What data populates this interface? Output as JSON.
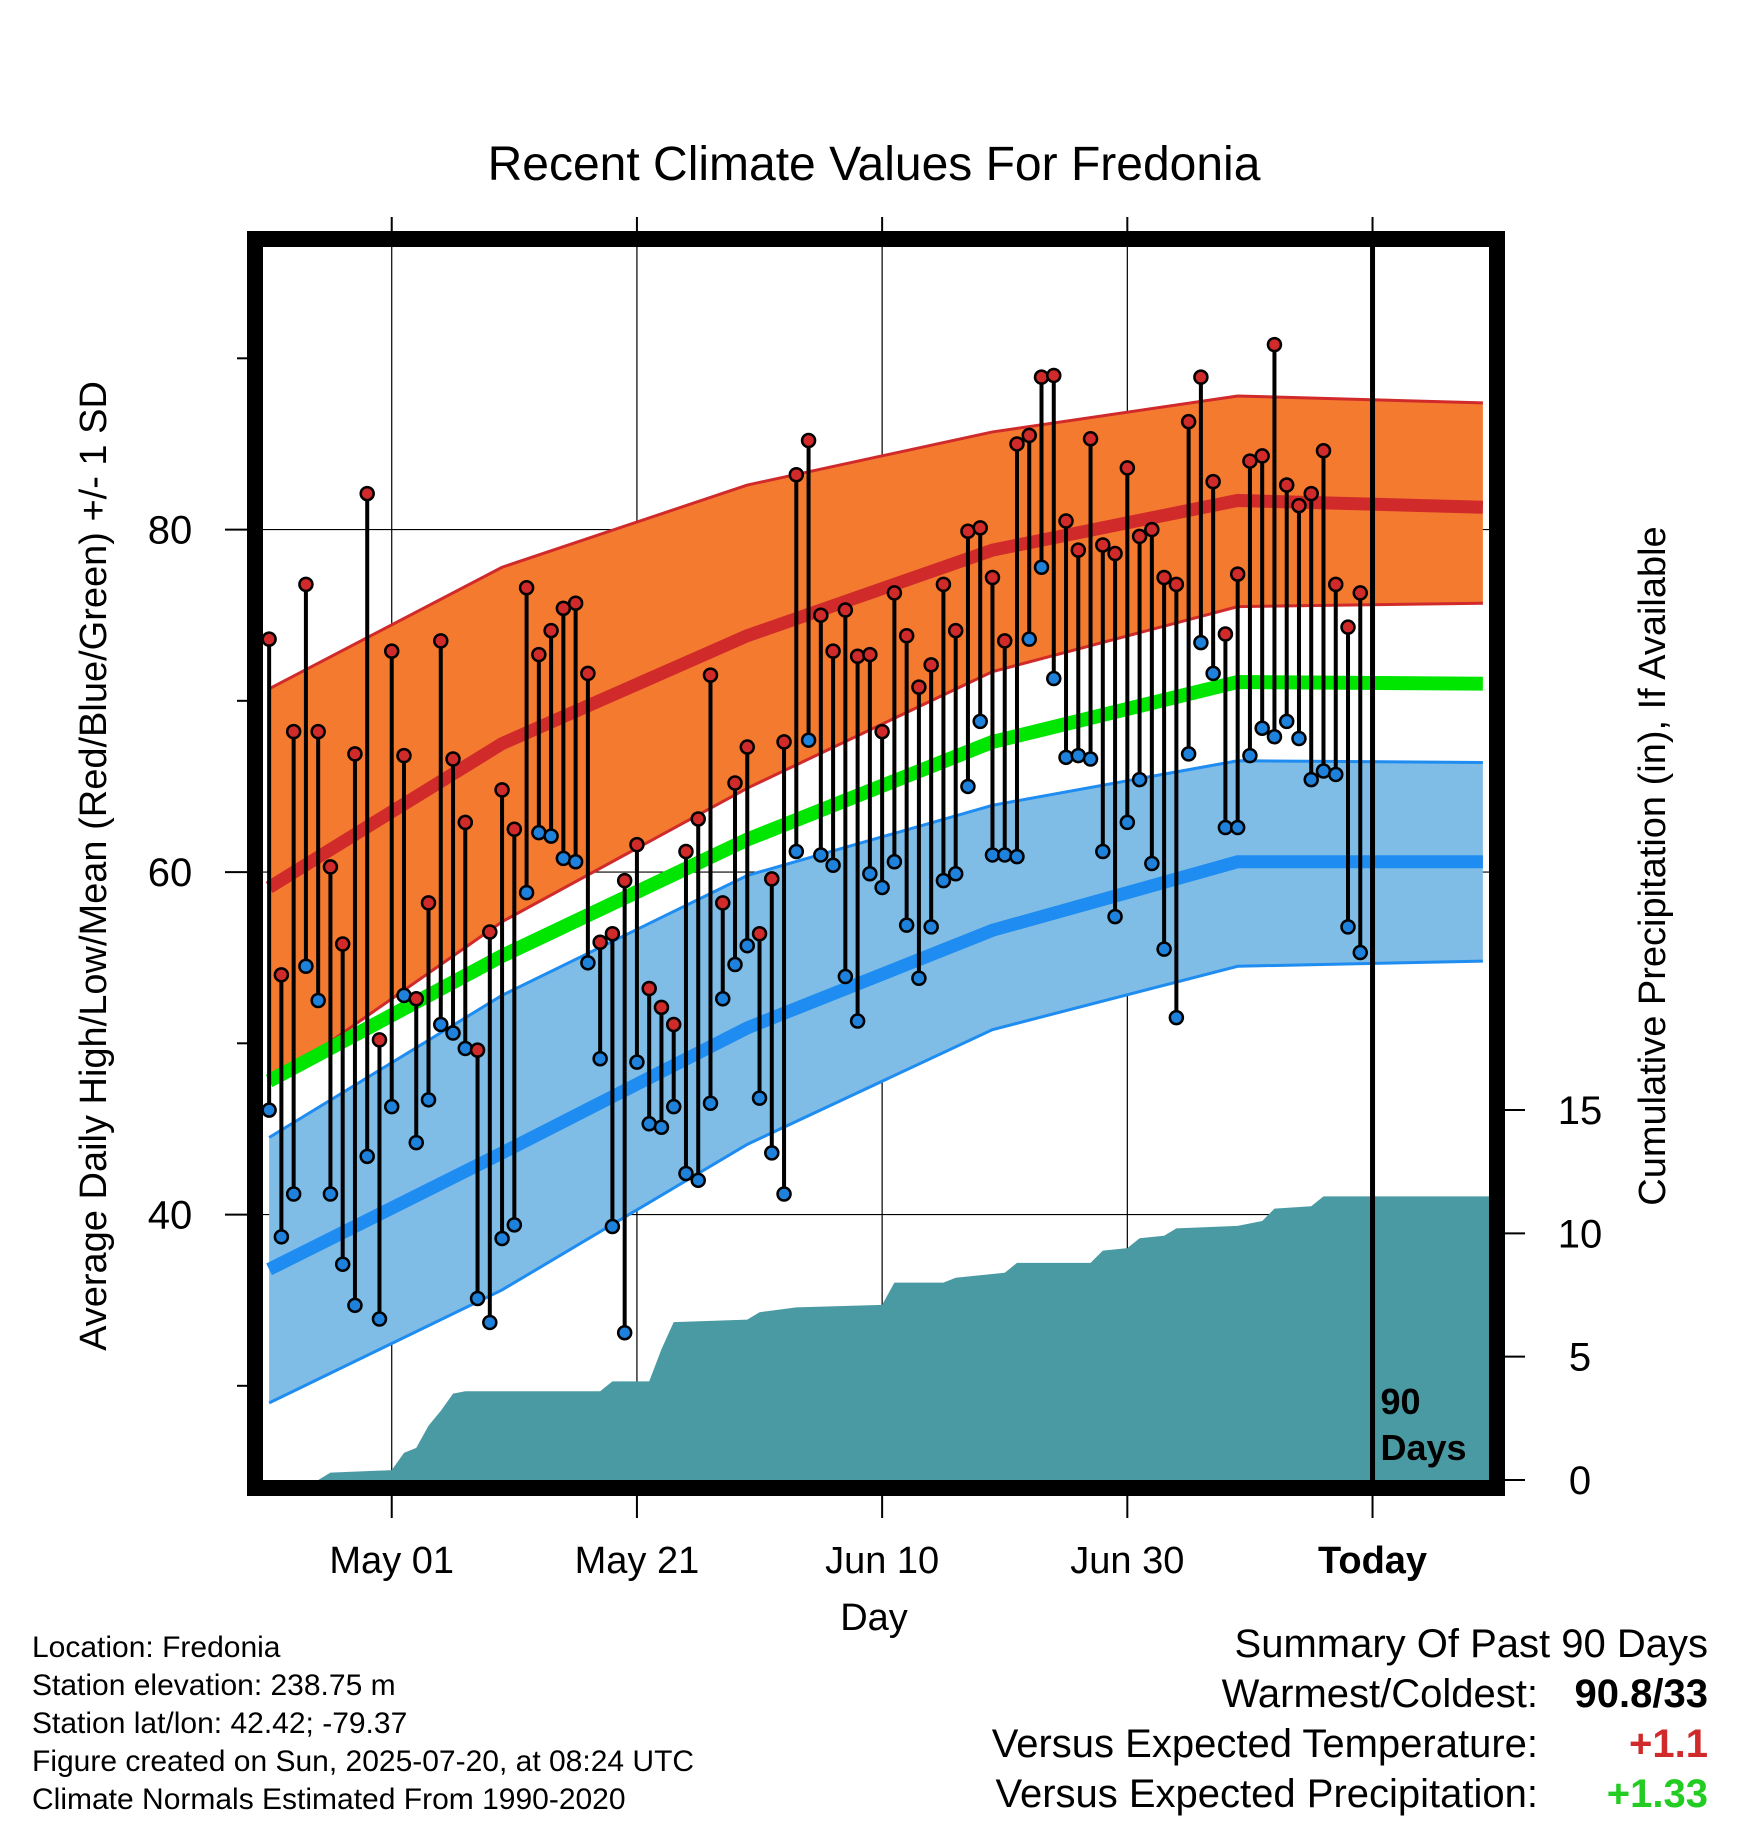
{
  "chart_data": {
    "type": "line",
    "title": "Recent Climate Values For Fredonia",
    "xlabel": "Day",
    "ylabel": "Average Daily High/Low/Mean (Red/Blue/Green) +/- 1 SD",
    "y2label": "Cumulative Precipitation (in), If Available",
    "x_start": "2025-04-21",
    "x_end": "2025-07-29",
    "today": "2025-07-20",
    "today_annotation": [
      "90",
      "Days"
    ],
    "x_ticks": [
      {
        "date": "2025-05-01",
        "label": "May 01"
      },
      {
        "date": "2025-05-21",
        "label": "May 21"
      },
      {
        "date": "2025-06-10",
        "label": "Jun 10"
      },
      {
        "date": "2025-06-30",
        "label": "Jun 30"
      },
      {
        "date": "2025-07-20",
        "label": "Today"
      }
    ],
    "ylim": [
      24.5,
      96.5
    ],
    "y_major_ticks": [
      40,
      60,
      80
    ],
    "y_minor_ticks": [
      30,
      50,
      70,
      90
    ],
    "y2lim": [
      0,
      15
    ],
    "y2_ticks": [
      0,
      5,
      10,
      15
    ],
    "grid": true,
    "colors": {
      "high_band": "#f47a30",
      "high_mean": "#d02a2a",
      "low_band": "#7fbde6",
      "low_mean": "#1e8cf0",
      "mean": "#00e600",
      "precip": "#4a9aa4",
      "high_point": "#d02a2a",
      "low_point": "#1e82dc"
    },
    "normals": {
      "dates": [
        "2025-04-21",
        "2025-05-10",
        "2025-05-30",
        "2025-06-19",
        "2025-07-09",
        "2025-07-29"
      ],
      "high_mean": [
        59.1,
        67.5,
        73.8,
        78.8,
        81.7,
        81.3
      ],
      "high_upper": [
        70.7,
        77.8,
        82.6,
        85.7,
        87.8,
        87.4
      ],
      "high_lower": [
        47.6,
        57.1,
        64.9,
        71.7,
        75.5,
        75.7
      ],
      "low_mean": [
        36.8,
        43.6,
        50.9,
        56.6,
        60.6,
        60.6
      ],
      "low_upper": [
        44.5,
        52.8,
        59.8,
        63.9,
        66.5,
        66.4
      ],
      "low_lower": [
        29.0,
        35.6,
        44.1,
        50.8,
        54.5,
        54.8
      ],
      "mean": [
        47.8,
        55.1,
        61.9,
        67.6,
        71.1,
        71.0
      ]
    },
    "series": [
      {
        "name": "Daily High",
        "values": [
          73.6,
          54.0,
          68.2,
          76.8,
          68.2,
          60.3,
          55.8,
          66.9,
          82.1,
          50.2,
          72.9,
          66.8,
          52.6,
          58.2,
          73.5,
          66.6,
          62.9,
          49.6,
          56.5,
          64.8,
          62.5,
          76.6,
          72.7,
          74.1,
          75.4,
          75.7,
          71.6,
          55.9,
          56.4,
          59.5,
          61.6,
          53.2,
          52.1,
          51.1,
          61.2,
          63.1,
          71.5,
          58.2,
          65.2,
          67.3,
          56.4,
          59.6,
          67.6,
          83.2,
          85.2,
          75.0,
          72.9,
          75.3,
          72.6,
          72.7,
          68.2,
          76.3,
          73.8,
          70.8,
          72.1,
          76.8,
          74.1,
          79.9,
          80.1,
          77.2,
          73.5,
          85.0,
          85.5,
          88.9,
          89.0,
          80.5,
          78.8,
          85.3,
          79.1,
          78.6,
          83.6,
          79.6,
          80.0,
          77.2,
          76.8,
          86.3,
          88.9,
          82.8,
          73.9,
          77.4,
          84.0,
          84.3,
          90.8,
          82.6,
          81.4,
          82.1,
          84.6,
          76.8,
          74.3,
          76.3
        ]
      },
      {
        "name": "Daily Low",
        "values": [
          46.1,
          38.7,
          41.2,
          54.5,
          52.5,
          41.2,
          37.1,
          34.7,
          43.4,
          33.9,
          46.3,
          52.8,
          44.2,
          46.7,
          51.1,
          50.6,
          49.7,
          35.1,
          33.7,
          38.6,
          39.4,
          58.8,
          62.3,
          62.1,
          60.8,
          60.6,
          54.7,
          49.1,
          39.3,
          33.1,
          48.9,
          45.3,
          45.1,
          46.3,
          42.4,
          42.0,
          46.5,
          52.6,
          54.6,
          55.7,
          46.8,
          43.6,
          41.2,
          61.2,
          67.7,
          61.0,
          60.4,
          53.9,
          51.3,
          59.9,
          59.1,
          60.6,
          56.9,
          53.8,
          56.8,
          59.5,
          59.9,
          65.0,
          68.8,
          61.0,
          61.0,
          60.9,
          73.6,
          77.8,
          71.3,
          66.7,
          66.8,
          66.6,
          61.2,
          57.4,
          62.9,
          65.4,
          60.5,
          55.5,
          51.5,
          66.9,
          73.4,
          71.6,
          62.6,
          62.6,
          66.8,
          68.4,
          67.9,
          68.8,
          67.8,
          65.4,
          65.9,
          65.7,
          56.8,
          55.3
        ]
      },
      {
        "name": "Cumulative Precipitation",
        "points": [
          [
            0,
            0
          ],
          [
            4,
            0
          ],
          [
            5,
            0.3
          ],
          [
            10,
            0.4
          ],
          [
            11,
            1.1
          ],
          [
            12,
            1.3
          ],
          [
            13,
            2.2
          ],
          [
            14,
            2.8
          ],
          [
            15,
            3.5
          ],
          [
            16,
            3.6
          ],
          [
            27,
            3.6
          ],
          [
            28,
            4.0
          ],
          [
            31,
            4.0
          ],
          [
            32,
            5.3
          ],
          [
            33,
            6.4
          ],
          [
            39,
            6.5
          ],
          [
            40,
            6.8
          ],
          [
            43,
            7.0
          ],
          [
            50,
            7.1
          ],
          [
            51,
            8.0
          ],
          [
            55,
            8.0
          ],
          [
            56,
            8.2
          ],
          [
            60,
            8.4
          ],
          [
            61,
            8.8
          ],
          [
            67,
            8.8
          ],
          [
            68,
            9.3
          ],
          [
            70,
            9.4
          ],
          [
            71,
            9.8
          ],
          [
            73,
            9.9
          ],
          [
            74,
            10.2
          ],
          [
            79,
            10.3
          ],
          [
            81,
            10.5
          ],
          [
            82,
            11.0
          ],
          [
            85,
            11.1
          ],
          [
            86,
            11.5
          ],
          [
            89,
            11.5
          ]
        ]
      }
    ]
  },
  "location_info": {
    "location": "Location: Fredonia",
    "elevation": "Station elevation: 238.75 m",
    "latlon": "Station lat/lon: 42.42; -79.37",
    "created": "Figure created on Sun, 2025-07-20, at 08:24 UTC",
    "normals": "Climate Normals Estimated From 1990-2020"
  },
  "summary": {
    "title": "Summary Of Past 90 Days",
    "warm_cold_label": "Warmest/Coldest:",
    "warm_cold_value": "90.8/33",
    "temp_label": "Versus Expected Temperature:",
    "temp_value": "+1.1",
    "temp_color": "#d02a2a",
    "precip_label": "Versus Expected Precipitation:",
    "precip_value": "+1.33",
    "precip_color": "#22cc22"
  }
}
